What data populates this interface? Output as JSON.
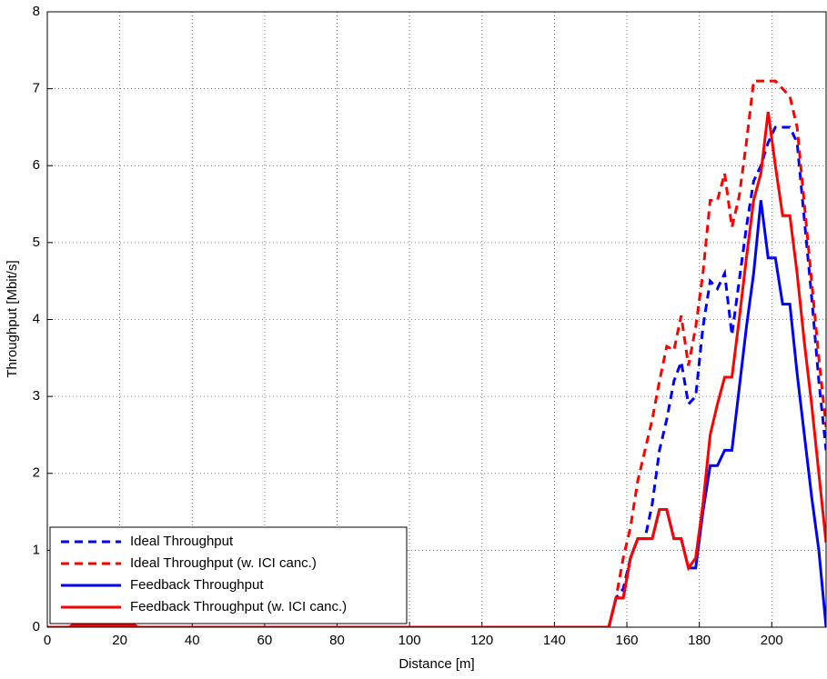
{
  "chart_data": {
    "type": "line",
    "xlabel": "Distance [m]",
    "ylabel": "Throughput [Mbit/s]",
    "x": [
      0,
      6,
      7,
      24,
      25,
      155,
      157,
      159,
      161,
      163,
      165,
      167,
      169,
      171,
      173,
      175,
      177,
      179,
      181,
      183,
      185,
      187,
      189,
      191,
      193,
      195,
      197,
      199,
      201,
      203,
      205,
      207,
      209,
      211,
      213,
      215
    ],
    "series": [
      {
        "name": "Ideal Throughput",
        "color": "#0000ff",
        "dash": "dashed",
        "values": [
          0,
          0,
          0,
          0,
          0,
          0,
          0.38,
          0.5,
          0.9,
          1.15,
          1.15,
          1.6,
          2.3,
          2.7,
          3.2,
          3.45,
          2.9,
          3.0,
          3.9,
          4.5,
          4.4,
          4.6,
          3.8,
          4.5,
          5.2,
          5.8,
          6.0,
          6.3,
          6.5,
          6.5,
          6.5,
          6.3,
          5.3,
          4.3,
          3.2,
          2.3
        ]
      },
      {
        "name": "Ideal Throughput (w. ICI canc.)",
        "color": "#ff0000",
        "dash": "dashed",
        "values": [
          0,
          0,
          0.03,
          0.03,
          0,
          0,
          0.38,
          0.9,
          1.3,
          1.9,
          2.3,
          2.7,
          3.2,
          3.65,
          3.6,
          4.05,
          3.4,
          3.9,
          4.6,
          5.55,
          5.55,
          5.9,
          5.2,
          5.6,
          6.3,
          7.1,
          7.1,
          7.1,
          7.1,
          7.0,
          6.9,
          6.5,
          5.5,
          4.5,
          3.5,
          2.6
        ]
      },
      {
        "name": "Feedback Throughput",
        "color": "#0000ff",
        "dash": "solid",
        "values": [
          0,
          0,
          0,
          0,
          0,
          0,
          0.38,
          0.38,
          0.9,
          1.15,
          1.15,
          1.15,
          1.53,
          1.53,
          1.15,
          1.15,
          0.77,
          0.77,
          1.5,
          2.1,
          2.1,
          2.3,
          2.3,
          3.1,
          3.9,
          4.6,
          5.55,
          4.8,
          4.8,
          4.2,
          4.2,
          3.3,
          2.5,
          1.7,
          1.0,
          0
        ]
      },
      {
        "name": "Feedback Throughput (w. ICI canc.)",
        "color": "#ff0000",
        "dash": "solid",
        "values": [
          0,
          0,
          0.03,
          0.03,
          0,
          0,
          0.38,
          0.38,
          0.9,
          1.15,
          1.15,
          1.15,
          1.53,
          1.53,
          1.15,
          1.15,
          0.77,
          0.9,
          1.6,
          2.5,
          2.9,
          3.25,
          3.25,
          4.0,
          4.8,
          5.55,
          5.9,
          6.7,
          6.0,
          5.35,
          5.35,
          4.6,
          3.7,
          2.9,
          2.0,
          1.1
        ]
      }
    ],
    "xlim": [
      0,
      215
    ],
    "xticks": [
      0,
      20,
      40,
      60,
      80,
      100,
      120,
      140,
      160,
      180,
      200
    ],
    "ylim": [
      0,
      8
    ],
    "yticks": [
      0,
      1,
      2,
      3,
      4,
      5,
      6,
      7,
      8
    ],
    "grid": true,
    "legend": "lower-left"
  }
}
